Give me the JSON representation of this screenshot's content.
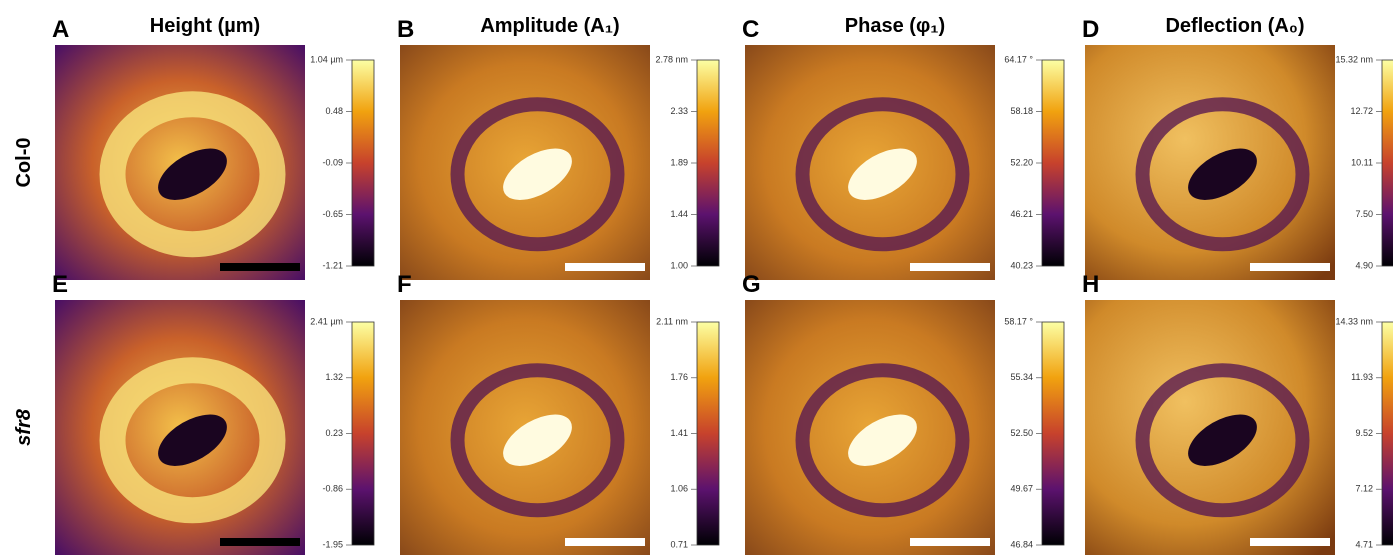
{
  "columns": [
    {
      "title": "Height (µm)"
    },
    {
      "title": "Amplitude (A₁)"
    },
    {
      "title": "Phase (φ₁)"
    },
    {
      "title": "Deflection (A₀)"
    }
  ],
  "rows": [
    {
      "label": "Col-0",
      "panels": [
        {
          "letter": "A",
          "ticks": [
            "1.04 µm",
            "0.48",
            "-0.09",
            "-0.65",
            "-1.21"
          ]
        },
        {
          "letter": "B",
          "ticks": [
            "2.78 nm",
            "2.33",
            "1.89",
            "1.44",
            "1.00"
          ]
        },
        {
          "letter": "C",
          "ticks": [
            "64.17 °",
            "58.18",
            "52.20",
            "46.21",
            "40.23"
          ]
        },
        {
          "letter": "D",
          "ticks": [
            "15.32 nm",
            "12.72",
            "10.11",
            "7.50",
            "4.90"
          ]
        }
      ]
    },
    {
      "label": "sfr8",
      "panels": [
        {
          "letter": "E",
          "ticks": [
            "2.41 µm",
            "1.32",
            "0.23",
            "-0.86",
            "-1.95"
          ]
        },
        {
          "letter": "F",
          "ticks": [
            "2.11 nm",
            "1.76",
            "1.41",
            "1.06",
            "0.71"
          ]
        },
        {
          "letter": "G",
          "ticks": [
            "58.17 °",
            "55.34",
            "52.50",
            "49.67",
            "46.84"
          ]
        },
        {
          "letter": "H",
          "ticks": [
            "14.33 nm",
            "11.93",
            "9.52",
            "7.12",
            "4.71"
          ]
        }
      ]
    }
  ]
}
